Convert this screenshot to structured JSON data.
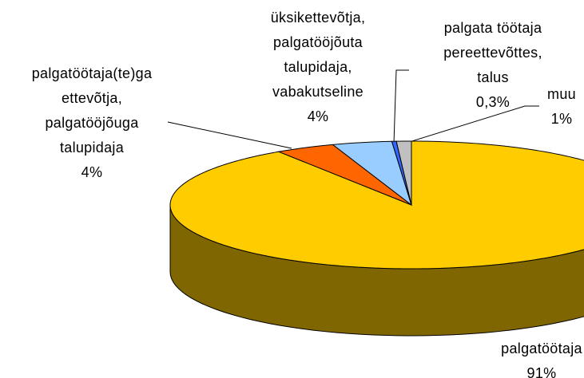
{
  "chart_data": {
    "type": "pie",
    "categories": [
      "palgatöötaja",
      "palgatöötaja(te)ga\nettevõtja,\npalgatööjõuga\ntalupidaja",
      "üksikettevõtja,\npalgatööjõuta\ntalupidaja,\nvabakutseline",
      "palgata töötaja\npereettevõttes,\ntalus",
      "muu"
    ],
    "values": [
      91,
      4,
      4,
      0.3,
      1
    ],
    "value_labels": [
      "91%",
      "4%",
      "4%",
      "0,3%",
      "1%"
    ],
    "colors": [
      "#ffcc00",
      "#ff6600",
      "#99ccff",
      "#3366ff",
      "#c0c0c0"
    ]
  }
}
